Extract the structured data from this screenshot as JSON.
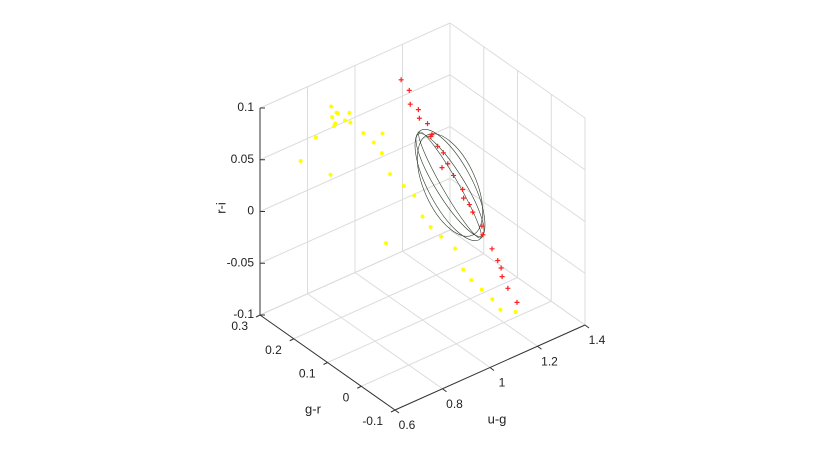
{
  "chart_data": {
    "type": "scatter3d",
    "x_label": "u-g",
    "y_label": "g-r",
    "z_label": "r-i",
    "xlim": [
      0.6,
      1.4
    ],
    "xticks": [
      0.6,
      0.8,
      1,
      1.2,
      1.4
    ],
    "ylim": [
      -0.1,
      0.3
    ],
    "yticks": [
      -0.1,
      0,
      0.1,
      0.2,
      0.3
    ],
    "zlim": [
      -0.1,
      0.1
    ],
    "zticks": [
      -0.1,
      -0.05,
      0,
      0.05,
      0.1
    ],
    "grid": true,
    "series": [
      {
        "color": "#ffff00",
        "x": [
          0.78,
          0.8,
          0.82,
          0.79,
          0.81,
          0.77,
          0.83,
          0.8,
          0.85,
          0.76,
          0.9,
          0.95,
          1.0,
          1.05,
          1.1,
          1.15,
          1.2,
          0.88,
          0.98,
          1.08,
          1.18,
          0.7,
          0.75,
          0.92,
          1.02,
          1.12,
          1.25,
          0.84,
          0.86,
          0.96
        ],
        "y": [
          0.2,
          0.21,
          0.19,
          0.22,
          0.18,
          0.2,
          0.21,
          0.23,
          0.17,
          0.19,
          0.15,
          0.12,
          0.1,
          0.08,
          0.05,
          0.03,
          0.01,
          0.16,
          0.11,
          0.06,
          0.02,
          0.25,
          0.24,
          0.14,
          0.09,
          0.04,
          0.0,
          0.26,
          0.12,
          0.18
        ],
        "z": [
          0.1,
          0.095,
          0.098,
          0.09,
          0.092,
          0.088,
          0.085,
          0.097,
          0.08,
          0.094,
          0.06,
          0.03,
          0.0,
          -0.02,
          -0.05,
          -0.07,
          -0.09,
          0.07,
          0.02,
          -0.03,
          -0.08,
          0.05,
          0.07,
          0.04,
          -0.01,
          -0.06,
          -0.095,
          0.02,
          0.09,
          -0.04
        ]
      },
      {
        "color": "#ff2020",
        "x": [
          1.2,
          1.19,
          1.21,
          1.2,
          1.22,
          1.21,
          1.22,
          1.23,
          1.22,
          1.23,
          1.24,
          1.23,
          1.24,
          1.25,
          1.24,
          1.25,
          1.26,
          1.25,
          1.26,
          1.27,
          1.18,
          1.22,
          1.24,
          1.21,
          1.26
        ],
        "y": [
          0.28,
          0.27,
          0.26,
          0.25,
          0.24,
          0.22,
          0.21,
          0.2,
          0.18,
          0.17,
          0.15,
          0.14,
          0.12,
          0.1,
          0.09,
          0.07,
          0.06,
          0.04,
          0.03,
          0.01,
          0.29,
          0.23,
          0.13,
          0.19,
          0.05
        ],
        "z": [
          0.06,
          0.05,
          0.045,
          0.04,
          0.035,
          0.03,
          0.02,
          0.015,
          0.01,
          0.0,
          -0.01,
          -0.015,
          -0.025,
          -0.035,
          -0.04,
          -0.05,
          -0.06,
          -0.07,
          -0.08,
          -0.09,
          0.07,
          0.025,
          -0.02,
          0.005,
          -0.065
        ]
      }
    ]
  }
}
